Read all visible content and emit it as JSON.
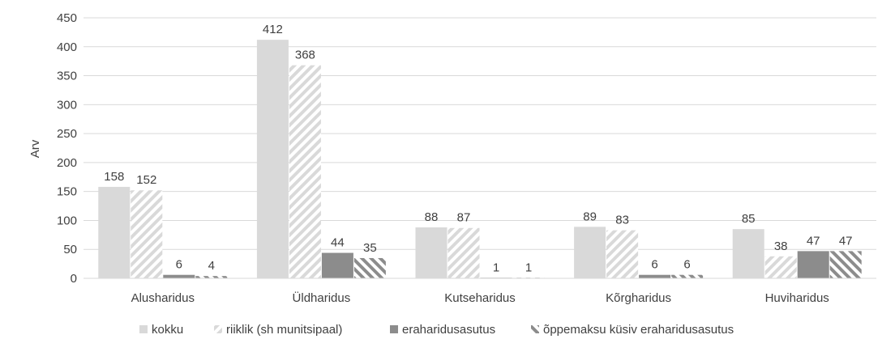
{
  "chart_data": {
    "type": "bar",
    "title": "",
    "xlabel": "",
    "ylabel": "Arv",
    "ylim": [
      0,
      450
    ],
    "yticks": [
      0,
      50,
      100,
      150,
      200,
      250,
      300,
      350,
      400,
      450
    ],
    "grid": true,
    "legend_position": "bottom",
    "categories": [
      "Alusharidus",
      "Üldharidus",
      "Kutseharidus",
      "Kõrgharidus",
      "Huviharidus"
    ],
    "series": [
      {
        "name": "kokku",
        "values": [
          158,
          412,
          88,
          89,
          85
        ],
        "pattern": "solid-light",
        "color": "#d9d9d9"
      },
      {
        "name": "riiklik (sh munitsipaal)",
        "values": [
          152,
          368,
          87,
          83,
          38
        ],
        "pattern": "diagonal-light",
        "color": "#d9d9d9"
      },
      {
        "name": "eraharidusasutus",
        "values": [
          6,
          44,
          1,
          6,
          47
        ],
        "pattern": "solid-dark",
        "color": "#8c8c8c"
      },
      {
        "name": "õppemaksu küsiv eraharidusasutus",
        "values": [
          4,
          35,
          1,
          6,
          47
        ],
        "pattern": "diagonal-dark",
        "color": "#8c8c8c"
      }
    ]
  }
}
